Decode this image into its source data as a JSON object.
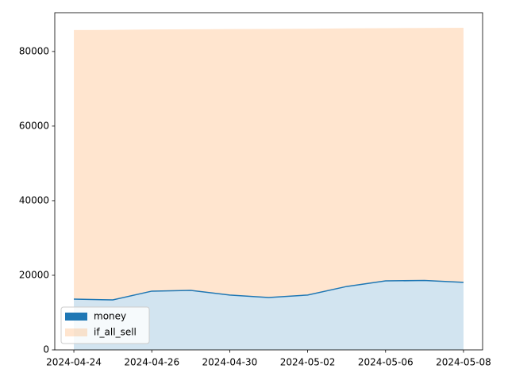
{
  "chart_data": {
    "type": "area",
    "categories": [
      "2024-04-24",
      null,
      "2024-04-26",
      null,
      "2024-04-30",
      null,
      "2024-05-02",
      null,
      "2024-05-06",
      null,
      "2024-05-08"
    ],
    "series": [
      {
        "name": "money",
        "color": "#1f77b4",
        "line": true,
        "legend_alpha": 1,
        "values": [
          13600,
          13400,
          15750,
          15950,
          14700,
          14050,
          14700,
          17000,
          18500,
          18600,
          18100
        ]
      },
      {
        "name": "if_all_sell",
        "color": "#ff7f0e",
        "line": false,
        "legend_alpha": 0.2,
        "values": [
          85750,
          85800,
          85900,
          85950,
          86000,
          86050,
          86100,
          86200,
          86250,
          86300,
          86350
        ]
      }
    ],
    "fill_alpha": 0.2,
    "ylim": [
      0,
      90400
    ],
    "yticks": [
      0,
      20000,
      40000,
      60000,
      80000
    ],
    "legend": "lower left"
  }
}
